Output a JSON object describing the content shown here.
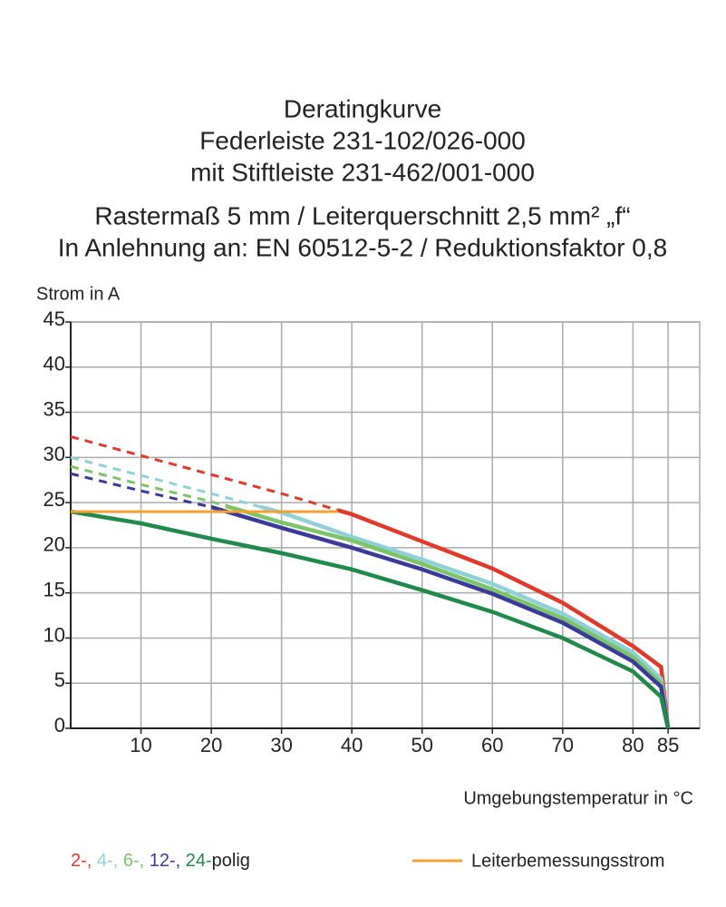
{
  "chart_data": {
    "type": "line",
    "title": [
      "Deratingkurve",
      "Federleiste 231-102/026-000",
      "mit Stiftleiste 231-462/001-000",
      "Rastermaß 5 mm / Leiterquerschnitt 2,5 mm² „f“",
      "In Anlehnung an: EN 60512-5-2 / Reduktionsfaktor 0,8"
    ],
    "y_label": "Strom in A",
    "x_label": "Umgebungstemperatur in °C",
    "xlim": [
      0,
      89.5
    ],
    "ylim": [
      0,
      45
    ],
    "xticks": [
      10,
      20,
      30,
      40,
      50,
      60,
      70,
      80,
      85
    ],
    "yticks": [
      0,
      5,
      10,
      15,
      20,
      25,
      30,
      35,
      40,
      45
    ],
    "grid": true,
    "x": [
      0,
      10,
      20,
      30,
      40,
      50,
      60,
      70,
      80,
      84,
      85
    ],
    "series": [
      {
        "name": "2-,",
        "color": "#e03a2a",
        "solid_from": 38,
        "values": [
          32.3,
          30.2,
          28.1,
          26.0,
          23.7,
          20.7,
          17.7,
          13.9,
          9.1,
          6.8,
          0
        ]
      },
      {
        "name": "4-,",
        "color": "#8fd0d8",
        "solid_from": 27,
        "values": [
          30.0,
          28.0,
          26.0,
          23.9,
          21.2,
          18.7,
          16.0,
          12.7,
          8.4,
          5.5,
          0
        ]
      },
      {
        "name": "6-,",
        "color": "#7cc46a",
        "solid_from": 22,
        "values": [
          29.0,
          27.0,
          25.1,
          22.8,
          20.8,
          18.2,
          15.4,
          12.2,
          7.9,
          5.0,
          0
        ]
      },
      {
        "name": "12-,",
        "color": "#3a3a9a",
        "solid_from": 20,
        "values": [
          28.2,
          26.3,
          24.5,
          22.2,
          20.0,
          17.6,
          14.9,
          11.7,
          7.4,
          4.6,
          0
        ]
      },
      {
        "name": "24-",
        "color": "#1f8a4a",
        "solid_from": 0,
        "values": [
          24.0,
          22.7,
          21.0,
          19.4,
          17.6,
          15.3,
          12.9,
          10.0,
          6.3,
          3.5,
          0
        ]
      }
    ],
    "legend_suffix": "polig",
    "ref_line": {
      "name": "Leiterbemessungsstrom",
      "color": "#f5a030",
      "value": 24,
      "x": [
        0,
        38
      ]
    }
  }
}
